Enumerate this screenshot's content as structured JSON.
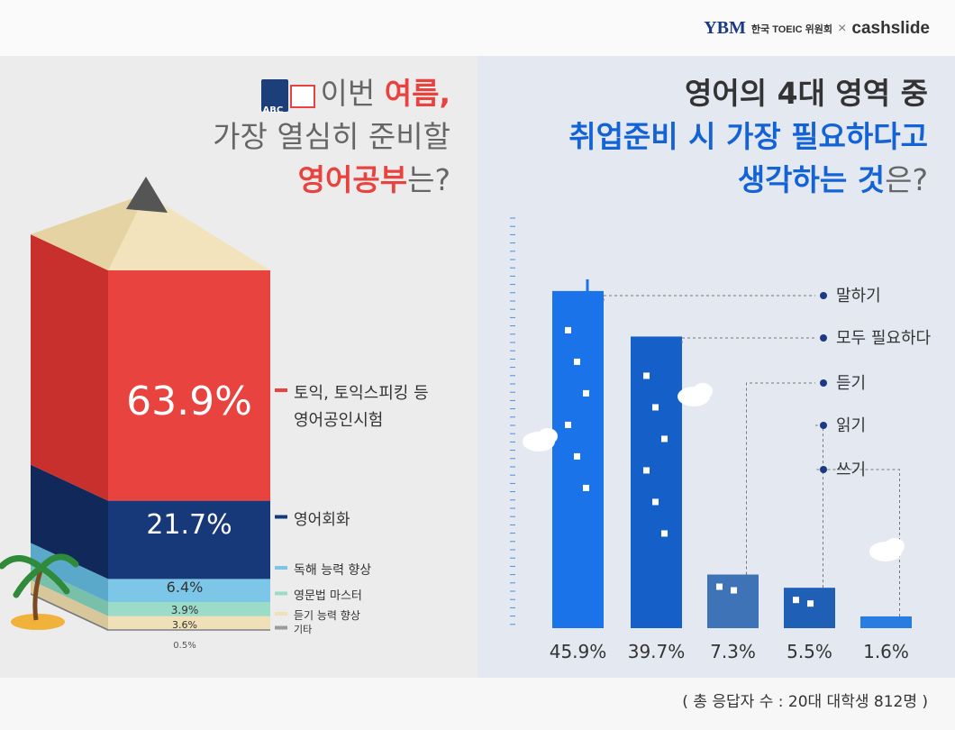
{
  "brand": {
    "ybm": "YBM",
    "toeic": "한국 TOEIC 위원회",
    "sep": "×",
    "cashslide": "cashslide"
  },
  "left_title": {
    "l1_prefix": "이번 ",
    "l1_highlight": "여름,",
    "l2": "가장 열심히 준비할",
    "l3_highlight": "영어공부",
    "l3_suffix": "는?"
  },
  "right_title": {
    "l1": "영어의 4대 영역 중",
    "l2": "취업준비 시 가장 필요하다고",
    "l3_highlight": "생각하는 것",
    "l3_suffix": "은?"
  },
  "book_icon_text": "ABC",
  "footnote": "( 총 응답자 수 : 20대 대학생 812명 )",
  "colors": {
    "red": "#e8433f",
    "navy": "#17397a",
    "lightblue": "#7cc7e8",
    "mint": "#9adcc8",
    "beige": "#f0e0b8",
    "grey": "#9a9a9a",
    "blue": "#1a73e8",
    "darkblue": "#1f5fb5"
  },
  "chart_data": [
    {
      "type": "bar",
      "style": "stacked-pencil",
      "categories": [
        "토익, 토익스피킹 등 영어공인시험",
        "영어회화",
        "독해 능력 향상",
        "영문법 마스터",
        "듣기 능력 향상",
        "기타"
      ],
      "legend": [
        "토익, 토익스피킹 등",
        "영어공인시험",
        "영어회화",
        "독해 능력 향상",
        "영문법 마스터",
        "듣기 능력 향상",
        "기타"
      ],
      "values": [
        63.9,
        21.7,
        6.4,
        3.9,
        3.6,
        0.5
      ],
      "labels": [
        "63.9%",
        "21.7%",
        "6.4%",
        "3.9%",
        "3.6%",
        "0.5%"
      ]
    },
    {
      "type": "bar",
      "categories": [
        "말하기",
        "모두 필요하다",
        "듣기",
        "읽기",
        "쓰기"
      ],
      "values": [
        45.9,
        39.7,
        7.3,
        5.5,
        1.6
      ],
      "labels": [
        "45.9%",
        "39.7%",
        "7.3%",
        "5.5%",
        "1.6%"
      ]
    }
  ]
}
